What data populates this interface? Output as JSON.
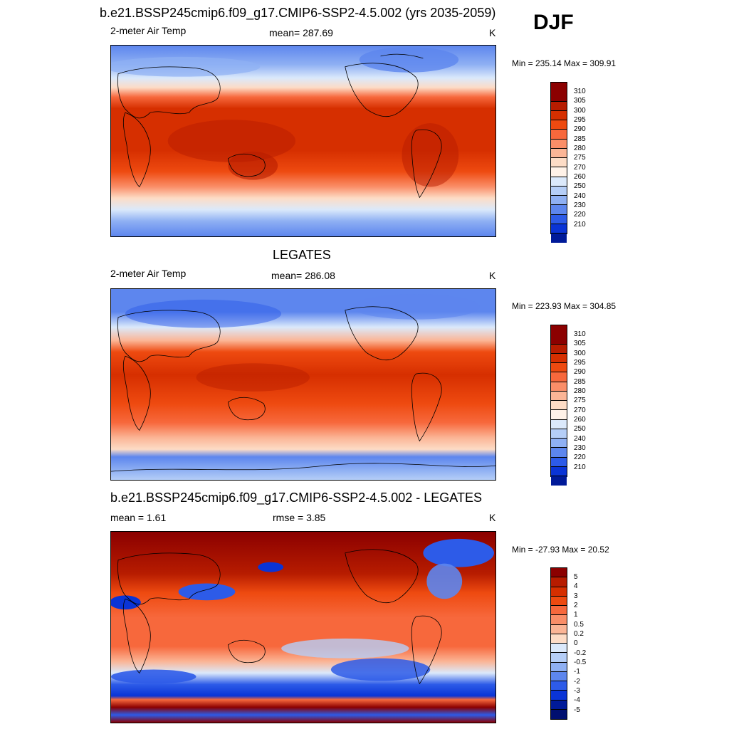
{
  "season": "DJF",
  "panels": [
    {
      "title": "b.e21.BSSP245cmip6.f09_g17.CMIP6-SSP2-4.5.002 (yrs 2035-2059)",
      "left_label": "2-meter Air Temp",
      "center_label": "mean= 287.69",
      "right_label": "K",
      "minmax": "Min = 235.14 Max = 309.91"
    },
    {
      "title": "LEGATES",
      "left_label": "2-meter Air Temp",
      "center_label": "mean= 286.08",
      "right_label": "K",
      "minmax": "Min = 223.93 Max = 304.85"
    },
    {
      "title": "b.e21.BSSP245cmip6.f09_g17.CMIP6-SSP2-4.5.002 - LEGATES",
      "left_label": "mean =   1.61",
      "center_label": "rmse =   3.85",
      "right_label": "K",
      "minmax": "Min = -27.93 Max =  20.52"
    }
  ],
  "colorbars": {
    "temperature": {
      "labels": [
        "310",
        "305",
        "300",
        "295",
        "290",
        "285",
        "280",
        "275",
        "270",
        "260",
        "250",
        "240",
        "230",
        "220",
        "210"
      ],
      "colors": [
        "#8b0000",
        "#b71c00",
        "#d62f00",
        "#ee4a10",
        "#f7683c",
        "#fa8e68",
        "#fbb596",
        "#fddcc6",
        "#fff2e8",
        "#dbe9fb",
        "#b5cef7",
        "#8fb0f3",
        "#5d86ee",
        "#2d5be8",
        "#0a34d6",
        "#001a99"
      ]
    },
    "difference": {
      "labels": [
        "5",
        "4",
        "3",
        "2",
        "1",
        "0.5",
        "0.2",
        "0",
        "-0.2",
        "-0.5",
        "-1",
        "-2",
        "-3",
        "-4",
        "-5"
      ],
      "colors": [
        "#8b0000",
        "#b71c00",
        "#d62f00",
        "#ee4a10",
        "#f7683c",
        "#fa8e68",
        "#fbb596",
        "#fddcc6",
        "#dbe9fb",
        "#b5cef7",
        "#8fb0f3",
        "#5d86ee",
        "#2d5be8",
        "#0a34d6",
        "#001a99",
        "#000f70"
      ]
    }
  }
}
